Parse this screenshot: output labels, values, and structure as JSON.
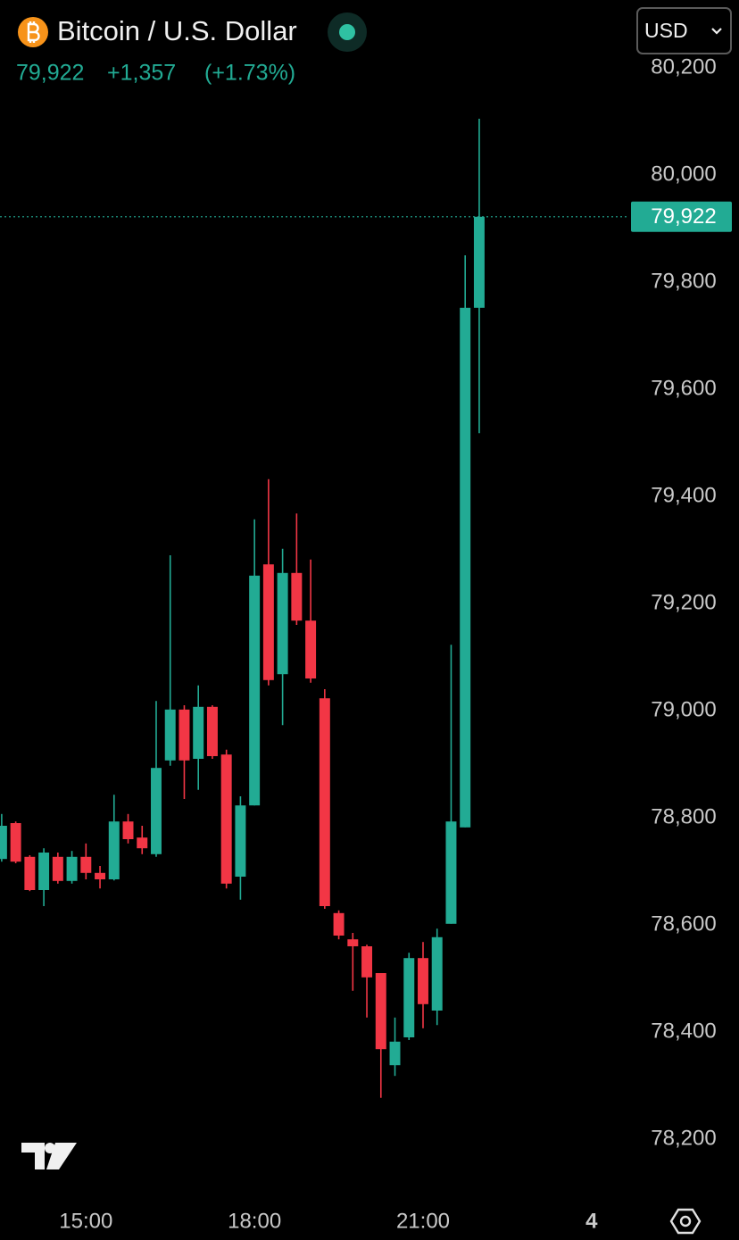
{
  "header": {
    "symbol": "Bitcoin / U.S. Dollar",
    "price": "79,922",
    "change": "+1,357",
    "change_pct": "(+1.73%)",
    "currency": "USD"
  },
  "chart_data": {
    "type": "candlestick",
    "up_color": "#22ab94",
    "down_color": "#f23645",
    "x": [
      13.5,
      13.75,
      14,
      14.25,
      14.5,
      14.75,
      15,
      15.25,
      15.5,
      15.75,
      16,
      16.25,
      16.5,
      16.75,
      17,
      17.25,
      17.5,
      17.75,
      18,
      18.25,
      18.5,
      18.75,
      19,
      19.25,
      19.5,
      19.75,
      20,
      20.25,
      20.5,
      20.75,
      21,
      21.25,
      21.5,
      21.75,
      22
    ],
    "open": [
      78723,
      78790,
      78727,
      78665,
      78727,
      78682,
      78727,
      78697,
      78685,
      78793,
      78763,
      78732,
      78907,
      79002,
      78910,
      79007,
      78918,
      78690,
      78823,
      79273,
      79068,
      79257,
      79168,
      79023,
      78622,
      78573,
      78560,
      78510,
      78338,
      78390,
      78538,
      78440,
      78602,
      78782,
      79752
    ],
    "high": [
      78807,
      78793,
      78730,
      78743,
      78735,
      78738,
      78752,
      78710,
      78843,
      78807,
      78785,
      79018,
      79290,
      79010,
      79047,
      79010,
      78927,
      78840,
      79357,
      79432,
      79302,
      79368,
      79282,
      79040,
      78627,
      78585,
      78563,
      78510,
      78427,
      78548,
      78568,
      78593,
      79123,
      79850,
      80105
    ],
    "low": [
      78718,
      78715,
      78663,
      78635,
      78677,
      78677,
      78685,
      78668,
      78683,
      78752,
      78732,
      78727,
      78897,
      78835,
      78852,
      78910,
      78668,
      78647,
      78823,
      79047,
      78973,
      79160,
      79052,
      78630,
      78573,
      78477,
      78427,
      78277,
      78318,
      78385,
      78407,
      78413,
      78602,
      78782,
      79518
    ],
    "close": [
      78785,
      78718,
      78665,
      78735,
      78682,
      78727,
      78697,
      78685,
      78793,
      78760,
      78743,
      78893,
      79002,
      78907,
      79007,
      78915,
      78677,
      78823,
      79252,
      79057,
      79257,
      79168,
      79060,
      78635,
      78580,
      78560,
      78502,
      78368,
      78382,
      78538,
      78452,
      78577,
      78793,
      79752,
      79922
    ],
    "xlim": [
      13.47,
      24.67
    ],
    "xticks": [
      {
        "value": 15,
        "label": "15:00"
      },
      {
        "value": 18,
        "label": "18:00"
      },
      {
        "value": 21,
        "label": "21:00"
      },
      {
        "value": 24,
        "label": "4"
      }
    ],
    "ylim": [
      78100,
      80300
    ],
    "yticks": [
      {
        "value": 78200,
        "label": "78,200"
      },
      {
        "value": 78400,
        "label": "78,400"
      },
      {
        "value": 78600,
        "label": "78,600"
      },
      {
        "value": 78800,
        "label": "78,800"
      },
      {
        "value": 79000,
        "label": "79,000"
      },
      {
        "value": 79200,
        "label": "79,200"
      },
      {
        "value": 79400,
        "label": "79,400"
      },
      {
        "value": 79600,
        "label": "79,600"
      },
      {
        "value": 79800,
        "label": "79,800"
      },
      {
        "value": 80000,
        "label": "80,000"
      },
      {
        "value": 80200,
        "label": "80,200"
      }
    ]
  }
}
